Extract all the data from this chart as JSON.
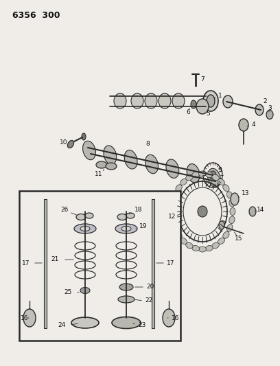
{
  "title": "6356  300",
  "bg_color": "#f0ede8",
  "line_color": "#2a2a2a",
  "text_color": "#111111",
  "fig_width": 4.08,
  "fig_height": 5.33,
  "dpi": 100
}
